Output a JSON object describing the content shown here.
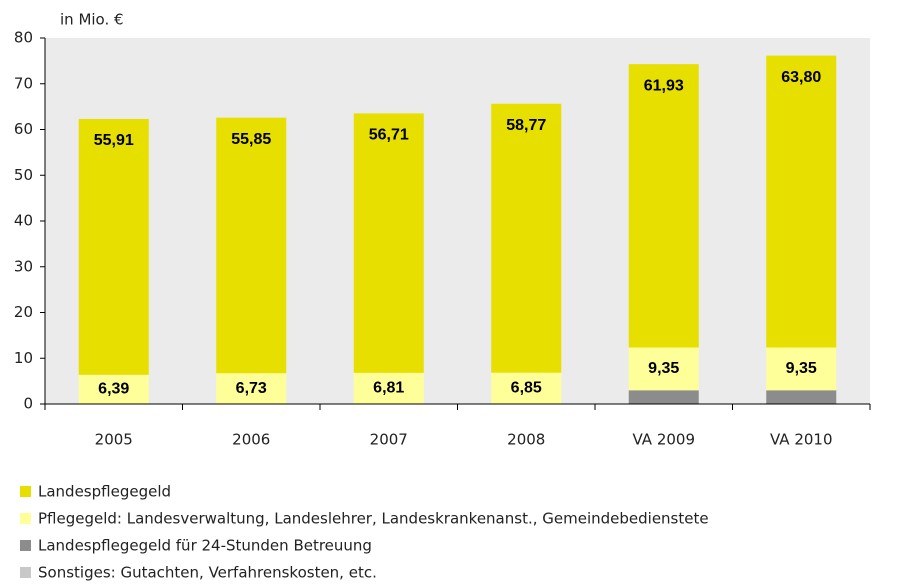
{
  "chart_data": {
    "type": "stacked_bar",
    "ylabel": "in Mio. €",
    "categories": [
      "2005",
      "2006",
      "2007",
      "2008",
      "VA 2009",
      "VA 2010"
    ],
    "series": [
      {
        "name": "Landespflegegeld",
        "color": "#e6df00",
        "values": [
          55.91,
          55.85,
          56.71,
          58.77,
          61.93,
          63.8
        ],
        "value_labels": [
          "55,91",
          "55,85",
          "56,71",
          "58,77",
          "61,93",
          "63,80"
        ]
      },
      {
        "name": "Pflegegeld: Landesverwaltung, Landeslehrer, Landeskrankenanst., Gemeindebedienstete",
        "color": "#ffff99",
        "values": [
          6.39,
          6.73,
          6.81,
          6.85,
          9.35,
          9.35
        ],
        "value_labels": [
          "6,39",
          "6,73",
          "6,81",
          "6,85",
          "9,35",
          "9,35"
        ]
      },
      {
        "name": "Landespflegegeld für 24-Stunden Betreuung",
        "color": "#8c8c8c",
        "values": [
          0,
          0,
          0,
          0,
          3.0,
          3.0
        ]
      },
      {
        "name": "Sonstiges: Gutachten, Verfahrenskosten, etc.",
        "color": "#c8c8c8",
        "values": [
          0,
          0,
          0,
          0,
          0,
          0
        ]
      }
    ],
    "ylim": [
      0,
      80
    ],
    "yticks": [
      0,
      10,
      20,
      30,
      40,
      50,
      60,
      70,
      80
    ]
  }
}
